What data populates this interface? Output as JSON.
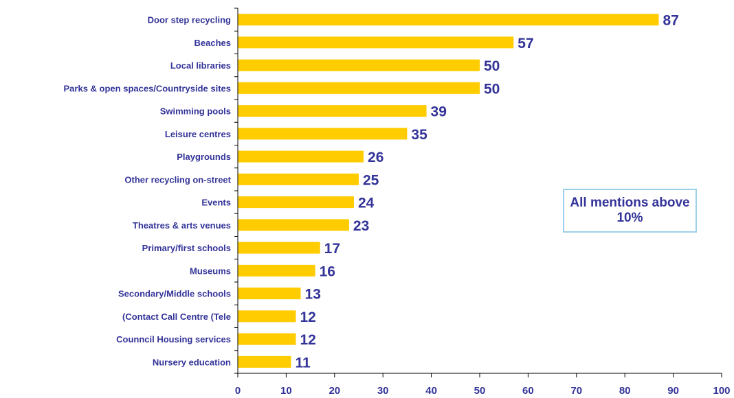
{
  "chart_data": {
    "type": "bar",
    "orientation": "horizontal",
    "categories": [
      "Door step recycling",
      "Beaches",
      "Local libraries",
      "Parks & open spaces/Countryside sites",
      "Swimming pools",
      "Leisure centres",
      "Playgrounds",
      "Other recycling on-street",
      "Events",
      "Theatres & arts venues",
      "Primary/first schools",
      "Museums",
      "Secondary/Middle schools",
      "(Contact Call Centre (Tele",
      "Counncil Housing services",
      "Nursery education"
    ],
    "values": [
      87,
      57,
      50,
      50,
      39,
      35,
      26,
      25,
      24,
      23,
      17,
      16,
      13,
      12,
      12,
      11
    ],
    "xlim": [
      0,
      100
    ],
    "xticks": [
      0,
      10,
      20,
      30,
      40,
      50,
      60,
      70,
      80,
      90,
      100
    ],
    "grid": false,
    "annotation": "All mentions above 10%",
    "colors": {
      "bar": "#ffcc00",
      "text": "#333399",
      "axis": "#000000",
      "annotation_border": "#9cd0ea"
    }
  }
}
